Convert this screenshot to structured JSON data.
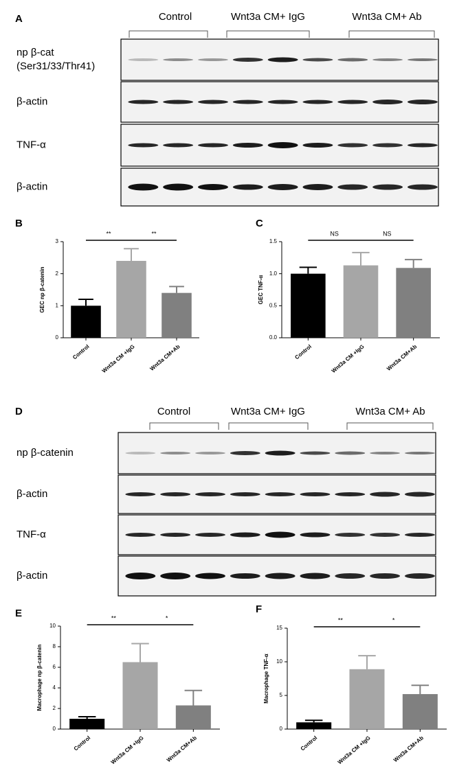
{
  "blots": [
    {
      "letter": "A",
      "groups": [
        "Control",
        "Wnt3a  CM+ IgG",
        "Wnt3a  CM+ Ab"
      ],
      "rows": [
        [
          "np β-cat",
          "(Ser31/33/Thr41)"
        ],
        [
          "β-actin"
        ],
        [
          "TNF-α"
        ],
        [
          "β-actin"
        ]
      ]
    },
    {
      "letter": "D",
      "groups": [
        "Control",
        "Wnt3a  CM+ IgG",
        "Wnt3a  CM+ Ab"
      ],
      "rows": [
        [
          "np β-catenin"
        ],
        [
          "β-actin"
        ],
        [
          "TNF-α"
        ],
        [
          "β-actin"
        ]
      ]
    }
  ],
  "chart_data": [
    {
      "type": "bar",
      "letter": "B",
      "ylabel": "GEC np β-catenin",
      "categories": [
        "Control",
        "Wnt3a CM +IgG",
        "Wnt3a CM+Ab"
      ],
      "values": [
        1.0,
        2.4,
        1.4
      ],
      "errors": [
        0.2,
        0.38,
        0.2
      ],
      "colors": [
        "#000000",
        "#a6a6a6",
        "#808080"
      ],
      "ylim": [
        0,
        3
      ],
      "yticks": [
        0,
        1,
        2,
        3
      ],
      "annotations": [
        "**",
        "**"
      ]
    },
    {
      "type": "bar",
      "letter": "C",
      "ylabel": "GEC TNF-α",
      "categories": [
        "Control",
        "Wnt3a CM +IgG",
        "Wnt3a CM+Ab"
      ],
      "values": [
        1.0,
        1.13,
        1.09
      ],
      "errors": [
        0.1,
        0.2,
        0.13
      ],
      "colors": [
        "#000000",
        "#a6a6a6",
        "#808080"
      ],
      "ylim": [
        0,
        1.5
      ],
      "yticks": [
        {
          "value": 0,
          "label": "0.0"
        },
        0.5,
        {
          "value": 1,
          "label": "1.0"
        },
        1.5
      ],
      "annotations": [
        "NS",
        "NS"
      ]
    },
    {
      "type": "bar",
      "letter": "E",
      "ylabel": "Macrophage np β-catenin",
      "categories": [
        "Control",
        "Wnt3a CM +IgG",
        "Wnt3a CM+Ab"
      ],
      "values": [
        1.0,
        6.5,
        2.3
      ],
      "errors": [
        0.2,
        1.8,
        1.45
      ],
      "colors": [
        "#000000",
        "#a6a6a6",
        "#808080"
      ],
      "ylim": [
        0,
        10
      ],
      "yticks": [
        0,
        2,
        4,
        6,
        8,
        10
      ],
      "annotations": [
        "**",
        "*"
      ]
    },
    {
      "type": "bar",
      "letter": "F",
      "ylabel": "Macrophage TNF-α",
      "categories": [
        "Control",
        "Wnt3a CM +IgG",
        "Wnt3a CM+Ab"
      ],
      "values": [
        1.0,
        8.9,
        5.2
      ],
      "errors": [
        0.3,
        2.0,
        1.3
      ],
      "colors": [
        "#000000",
        "#a6a6a6",
        "#808080"
      ],
      "ylim": [
        0,
        15
      ],
      "yticks": [
        0,
        5,
        10,
        15
      ],
      "annotations": [
        "**",
        "*"
      ]
    }
  ]
}
